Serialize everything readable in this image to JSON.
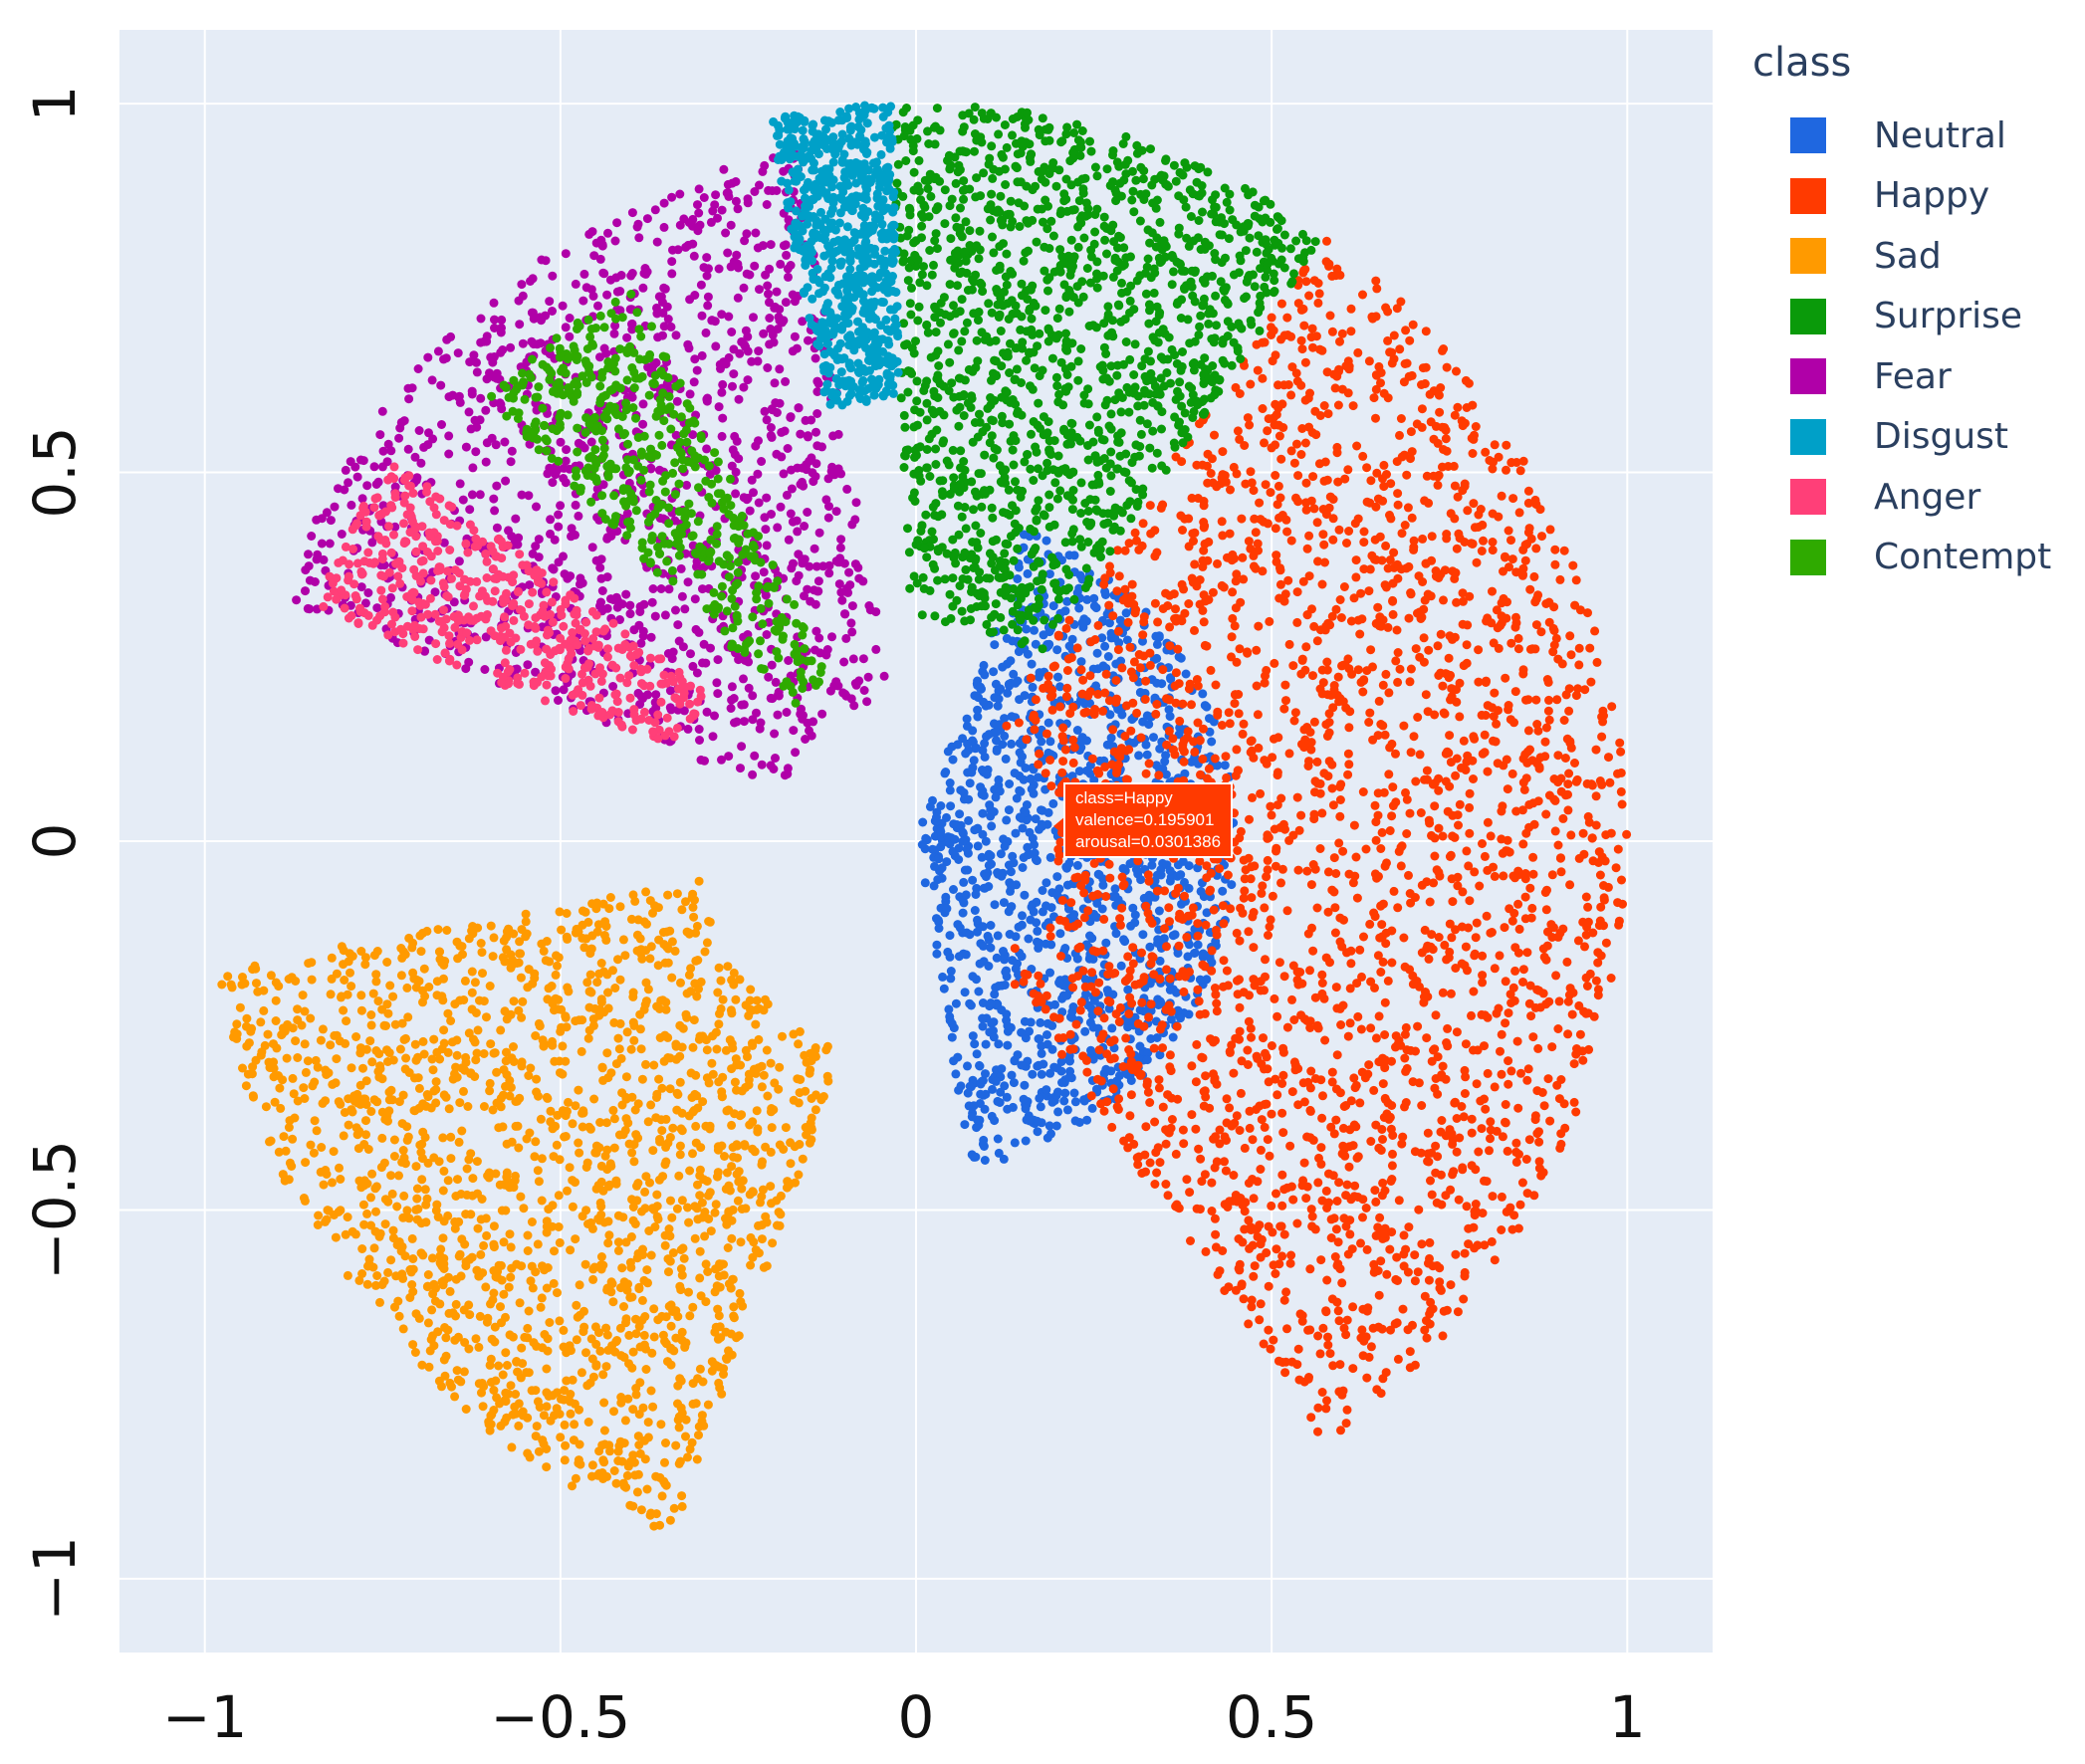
{
  "chart_data": {
    "type": "scatter",
    "title": "",
    "xlabel": "",
    "ylabel": "",
    "xlim": [
      -1.12,
      1.12
    ],
    "ylim": [
      -1.1,
      1.1
    ],
    "xticks": [
      -1,
      -0.5,
      0,
      0.5,
      1
    ],
    "yticks": [
      -1,
      -0.5,
      0,
      0.5,
      1
    ],
    "xtick_labels": [
      "−1",
      "−0.5",
      "0",
      "0.5",
      "1"
    ],
    "ytick_labels": [
      "−1",
      "−0.5",
      "0",
      "0.5",
      "1"
    ],
    "grid": true,
    "background": "#e5ecf6",
    "legend": {
      "title": "class",
      "position": "right"
    },
    "series": [
      {
        "name": "Neutral",
        "color": "#1f67e0",
        "region": {
          "angle_range_deg": [
            -80,
            70
          ],
          "radius_range": [
            0,
            0.45
          ],
          "note_points": [
            [
              -0.05,
              -0.1
            ],
            [
              0.0,
              0.05
            ],
            [
              0.05,
              -0.35
            ]
          ]
        }
      },
      {
        "name": "Happy",
        "color": "#ff3a00",
        "region": {
          "angle_range_deg": [
            -55,
            55
          ],
          "radius_range": [
            0.2,
            1.0
          ]
        }
      },
      {
        "name": "Sad",
        "color": "#ff9a00",
        "region": {
          "angle_range_deg": [
            -170,
            -110
          ],
          "radius_range": [
            0.3,
            1.0
          ]
        }
      },
      {
        "name": "Surprise",
        "color": "#0a9a0a",
        "region": {
          "angle_range_deg": [
            55,
            92
          ],
          "radius_range": [
            0.3,
            1.0
          ]
        }
      },
      {
        "name": "Fear",
        "color": "#b000a8",
        "region": {
          "angle_range_deg": [
            100,
            160
          ],
          "radius_range": [
            0.2,
            0.95
          ]
        }
      },
      {
        "name": "Disgust",
        "color": "#00a0c8",
        "region": {
          "angle_range_deg": [
            92,
            102
          ],
          "radius_range": [
            0.6,
            1.0
          ]
        }
      },
      {
        "name": "Anger",
        "color": "#ff3f78",
        "region": {
          "angle_range_deg": [
            145,
            160
          ],
          "radius_range": [
            0.35,
            0.9
          ]
        }
      },
      {
        "name": "Contempt",
        "color": "#2faa00",
        "region": {
          "angle_range_deg": [
            118,
            135
          ],
          "radius_range": [
            0.25,
            0.85
          ]
        }
      }
    ],
    "hover": {
      "lines": [
        "class=Happy",
        "valence=0.195901",
        "arousal=0.0301386"
      ],
      "x": 0.195901,
      "y": 0.0301386
    }
  }
}
